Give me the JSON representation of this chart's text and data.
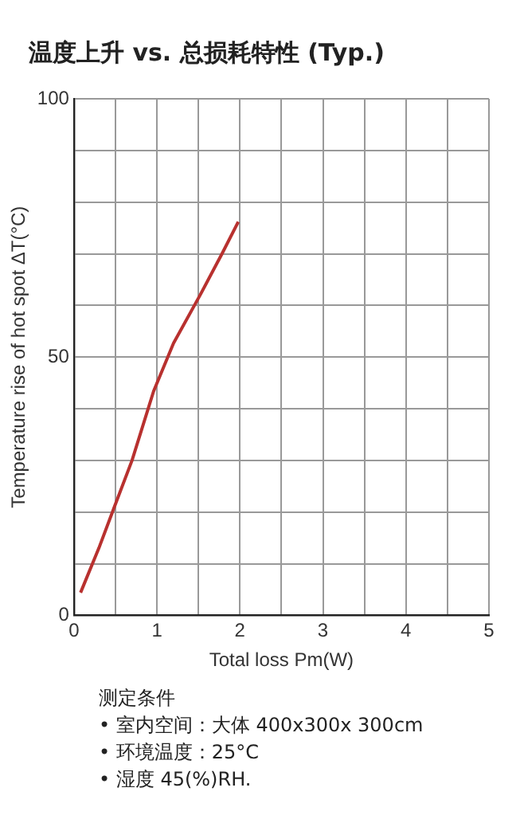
{
  "chart_data": {
    "type": "line",
    "title": "温度上升 vs. 总损耗特性 (Typ.)",
    "xlabel": "Total loss Pm(W)",
    "ylabel": "Temperature rise of hot spot ΔT(°C)",
    "x": [
      0.08,
      0.3,
      0.48,
      0.7,
      0.96,
      1.2,
      1.52,
      1.79,
      1.98
    ],
    "series": [
      {
        "color": "#b8312f",
        "values": [
          4.4,
          13,
          20.7,
          30,
          43.4,
          52.7,
          62,
          70.2,
          76.2
        ]
      }
    ],
    "xlim": [
      0,
      5
    ],
    "ylim": [
      0,
      100
    ],
    "xticks": [
      0,
      {
        "value": 0.5,
        "label": null
      },
      1,
      {
        "value": 1.5,
        "label": null
      },
      2,
      {
        "value": 2.5,
        "label": null
      },
      3,
      {
        "value": 3.5,
        "label": null
      },
      4,
      {
        "value": 4.5,
        "label": null
      },
      5
    ],
    "yticks": [
      0,
      {
        "value": 10,
        "label": null
      },
      {
        "value": 20,
        "label": null
      },
      {
        "value": 30,
        "label": null
      },
      {
        "value": 40,
        "label": null
      },
      50,
      {
        "value": 60,
        "label": null
      },
      {
        "value": 70,
        "label": null
      },
      {
        "value": 80,
        "label": null
      },
      {
        "value": 90,
        "label": null
      },
      100
    ],
    "grid": true,
    "legend": false,
    "marker": "none",
    "line_style": "solid",
    "annotations": [
      "测定条件",
      "• 室内空间：大体 400x300x 300cm",
      "• 环境温度：25°C",
      "• 湿度  45(%)RH."
    ]
  }
}
